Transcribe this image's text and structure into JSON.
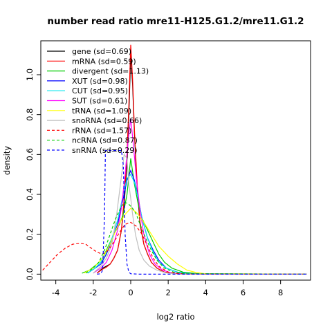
{
  "chart_data": {
    "type": "line",
    "title": "number read ratio mre11-H125.G1.2/mre11.G1.2",
    "xlabel": "log2 ratio",
    "ylabel": "density",
    "xlim": [
      -4.8,
      9.6
    ],
    "ylim": [
      -0.03,
      1.17
    ],
    "xticks": [
      -4,
      -2,
      0,
      2,
      4,
      6,
      8
    ],
    "yticks": [
      0.0,
      0.2,
      0.4,
      0.6,
      0.8,
      1.0
    ],
    "grid": false,
    "legend_position": "top-left",
    "series": [
      {
        "name": "gene (sd=0.69)",
        "color": "#000000",
        "dash": "solid",
        "x": [
          -1.8,
          -1.5,
          -1.3,
          -1.1,
          -0.9,
          -0.7,
          -0.5,
          -0.35,
          -0.2,
          -0.1,
          0,
          0.1,
          0.2,
          0.35,
          0.5,
          0.7,
          0.9,
          1.1,
          1.4,
          1.8,
          2.3,
          3,
          4,
          6,
          9.4
        ],
        "y": [
          0.005,
          0.03,
          0.04,
          0.05,
          0.08,
          0.12,
          0.22,
          0.35,
          0.55,
          0.8,
          1.1,
          0.95,
          0.7,
          0.42,
          0.25,
          0.15,
          0.1,
          0.06,
          0.03,
          0.01,
          0.005,
          0.002,
          0.001,
          0,
          0
        ]
      },
      {
        "name": "mRNA (sd=0.59)",
        "color": "#ff0000",
        "dash": "solid",
        "x": [
          -1.8,
          -1.5,
          -1.3,
          -1.1,
          -0.9,
          -0.7,
          -0.5,
          -0.35,
          -0.2,
          -0.1,
          0,
          0.1,
          0.2,
          0.35,
          0.5,
          0.7,
          0.9,
          1.1,
          1.4,
          1.8,
          2.3,
          3,
          4,
          6,
          9.4
        ],
        "y": [
          0.005,
          0.025,
          0.035,
          0.05,
          0.08,
          0.12,
          0.22,
          0.38,
          0.6,
          0.85,
          1.15,
          0.98,
          0.72,
          0.44,
          0.26,
          0.15,
          0.1,
          0.06,
          0.03,
          0.01,
          0.005,
          0.002,
          0.001,
          0,
          0
        ]
      },
      {
        "name": "divergent (sd=1.13)",
        "color": "#00cd00",
        "dash": "solid",
        "x": [
          -2.6,
          -2.2,
          -1.8,
          -1.5,
          -1.2,
          -0.9,
          -0.6,
          -0.4,
          -0.2,
          0,
          0.2,
          0.4,
          0.6,
          0.9,
          1.2,
          1.5,
          1.8,
          2.2,
          2.8,
          3.5,
          9.4
        ],
        "y": [
          0.005,
          0.02,
          0.05,
          0.08,
          0.14,
          0.2,
          0.25,
          0.3,
          0.4,
          0.58,
          0.45,
          0.35,
          0.28,
          0.22,
          0.16,
          0.1,
          0.06,
          0.03,
          0.01,
          0.003,
          0
        ]
      },
      {
        "name": "XUT (sd=0.98)",
        "color": "#0000ff",
        "dash": "solid",
        "x": [
          -2.3,
          -1.9,
          -1.6,
          -1.3,
          -1.0,
          -0.7,
          -0.4,
          -0.2,
          0,
          0.2,
          0.4,
          0.6,
          0.9,
          1.2,
          1.5,
          1.9,
          2.5,
          3.2,
          9.4
        ],
        "y": [
          0.005,
          0.03,
          0.05,
          0.1,
          0.17,
          0.25,
          0.38,
          0.47,
          0.52,
          0.47,
          0.38,
          0.28,
          0.18,
          0.12,
          0.07,
          0.03,
          0.01,
          0.002,
          0
        ]
      },
      {
        "name": "CUT (sd=0.95)",
        "color": "#00e5ee",
        "dash": "solid",
        "x": [
          -2.3,
          -1.9,
          -1.6,
          -1.3,
          -1.0,
          -0.7,
          -0.4,
          -0.2,
          0,
          0.2,
          0.4,
          0.6,
          0.9,
          1.2,
          1.5,
          1.9,
          2.5,
          3.2,
          9.4
        ],
        "y": [
          0.005,
          0.03,
          0.06,
          0.11,
          0.18,
          0.27,
          0.4,
          0.48,
          0.5,
          0.46,
          0.38,
          0.28,
          0.18,
          0.11,
          0.06,
          0.03,
          0.01,
          0.002,
          0
        ]
      },
      {
        "name": "SUT (sd=0.61)",
        "color": "#ff00ff",
        "dash": "solid",
        "x": [
          -2.0,
          -1.6,
          -1.3,
          -1.0,
          -0.7,
          -0.5,
          -0.3,
          -0.15,
          0,
          0.15,
          0.3,
          0.5,
          0.7,
          1.0,
          1.3,
          1.7,
          2.2,
          2.8,
          9.4
        ],
        "y": [
          0.005,
          0.03,
          0.06,
          0.12,
          0.22,
          0.33,
          0.5,
          0.66,
          0.78,
          0.64,
          0.48,
          0.32,
          0.2,
          0.1,
          0.05,
          0.02,
          0.006,
          0.001,
          0
        ]
      },
      {
        "name": "tRNA (sd=1.09)",
        "color": "#ffff00",
        "dash": "solid",
        "x": [
          -2.5,
          -2.0,
          -1.5,
          -1.1,
          -0.7,
          -0.3,
          0,
          0.3,
          0.7,
          1.1,
          1.5,
          2.0,
          2.5,
          3.0,
          3.5,
          4.0,
          9.4
        ],
        "y": [
          0.005,
          0.03,
          0.08,
          0.15,
          0.24,
          0.3,
          0.33,
          0.31,
          0.26,
          0.2,
          0.14,
          0.09,
          0.05,
          0.02,
          0.008,
          0.002,
          0
        ]
      },
      {
        "name": "snoRNA (sd=0.66)",
        "color": "#bebebe",
        "dash": "solid",
        "x": [
          -2.0,
          -1.6,
          -1.3,
          -1.0,
          -0.75,
          -0.55,
          -0.35,
          -0.2,
          -0.1,
          0,
          0.1,
          0.25,
          0.45,
          0.7,
          1.0,
          1.4,
          1.9,
          2.5,
          9.4
        ],
        "y": [
          0.005,
          0.04,
          0.08,
          0.15,
          0.3,
          0.45,
          0.6,
          0.58,
          0.45,
          0.38,
          0.3,
          0.2,
          0.12,
          0.07,
          0.04,
          0.02,
          0.006,
          0.001,
          0
        ]
      },
      {
        "name": "rRNA (sd=1.57)",
        "color": "#ff0000",
        "dash": "dashed",
        "x": [
          -4.7,
          -4.3,
          -3.9,
          -3.5,
          -3.1,
          -2.7,
          -2.4,
          -2.1,
          -1.8,
          -1.5,
          -1.2,
          -0.9,
          -0.6,
          -0.3,
          0,
          0.3,
          0.6,
          0.9,
          1.2,
          1.5,
          2.0,
          2.5,
          3.0,
          9.4
        ],
        "y": [
          0.02,
          0.06,
          0.1,
          0.13,
          0.15,
          0.155,
          0.15,
          0.13,
          0.11,
          0.1,
          0.12,
          0.16,
          0.21,
          0.25,
          0.26,
          0.24,
          0.2,
          0.14,
          0.08,
          0.04,
          0.01,
          0.003,
          0.001,
          0
        ]
      },
      {
        "name": "ncRNA (sd=0.87)",
        "color": "#00cd00",
        "dash": "dashed",
        "x": [
          -2.4,
          -2.0,
          -1.7,
          -1.4,
          -1.1,
          -0.8,
          -0.5,
          -0.3,
          -0.1,
          0.1,
          0.3,
          0.5,
          0.8,
          1.1,
          1.4,
          1.8,
          2.3,
          3.0,
          9.4
        ],
        "y": [
          0.005,
          0.03,
          0.06,
          0.12,
          0.2,
          0.28,
          0.34,
          0.36,
          0.35,
          0.33,
          0.3,
          0.25,
          0.18,
          0.12,
          0.07,
          0.03,
          0.01,
          0.002,
          0
        ]
      },
      {
        "name": "snRNA (sd=0.29)",
        "color": "#0000ff",
        "dash": "dashed",
        "x": [
          -1.8,
          -1.6,
          -1.5,
          -1.4,
          -1.35,
          -1.2,
          -1.0,
          -0.8,
          -0.6,
          -0.5,
          -0.4,
          -0.35,
          -0.3,
          -0.2,
          -0.1,
          0,
          0.5,
          1.0,
          9.4
        ],
        "y": [
          0,
          0.002,
          0.02,
          0.3,
          0.62,
          0.62,
          0.62,
          0.62,
          0.62,
          0.62,
          0.55,
          0.4,
          0.2,
          0.05,
          0.01,
          0.002,
          0,
          0,
          0
        ]
      }
    ]
  }
}
